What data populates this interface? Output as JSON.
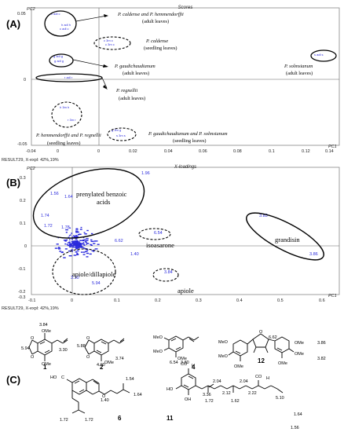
{
  "panelA": {
    "label": "(A)",
    "title": "Scores",
    "y_axis_label": "PC2",
    "x_axis_label": "PC1",
    "footer": "RESULT29, X-expl: 42%,19%",
    "x_ticks": [
      "0",
      "0.02",
      "0.04",
      "0.06",
      "0.08",
      "0.1",
      "0.12",
      "0.14"
    ],
    "y_ticks": [
      "0.05",
      "0",
      "-0.05"
    ],
    "left_tick": "-0.04",
    "annotations": {
      "calde_hemm_adult_1": "P. caldense and P.  hemmendorffii",
      "calde_hemm_adult_2": "(adult leaves)",
      "calde_seed_1": "P. caldense",
      "calde_seed_2": "(seedling leaves)",
      "gaud_adult_1": "P. gaudichaudianum",
      "gaud_adult_2": "(adult leaves)",
      "regn_adult_1": "P. regnellii",
      "regn_adult_2": "(adult leaves)",
      "solm_adult_1": "P. solmsianum",
      "solm_adult_2": "(adult leaves)",
      "hemm_regn_seed_1": "P. hemmendorffii and P. regnellii",
      "hemm_regn_seed_2": "(seedling leaves)",
      "gaud_solm_seed_1": "P. gaudichaudianum and  P. solmsianum",
      "gaud_solm_seed_2": "(seedling leaves)"
    }
  },
  "panelB": {
    "label": "(B)",
    "title": "X-loadings",
    "y_axis_label": "PC2",
    "x_axis_label": "PC1",
    "footer": "RESULT29, X-expl: 42%,19%",
    "x_ticks": [
      "-0.1",
      "0",
      "0.1",
      "0.2",
      "0.3",
      "0.4",
      "0.5",
      "0.6",
      "0.7"
    ],
    "y_ticks": [
      "0.3",
      "0.2",
      "0.1",
      "0",
      "-0.1",
      "-0.2",
      "-0.3"
    ],
    "groups": {
      "prenylated_1": "prenylated benzoic",
      "prenylated_2": "acids",
      "isoasarone": "isoasarone",
      "grandisin": "grandisin",
      "apiole_dillapiole": "apiole/dillapiole",
      "apiole": "apiole"
    },
    "loading_labels": [
      "1.96",
      "1.56",
      "1.64",
      "1.74",
      "1.72",
      "1.78",
      "3.83",
      "3.86",
      "6.54",
      "6.62",
      "3.84",
      "3.30",
      "5.94",
      "1.40"
    ]
  },
  "panelC": {
    "label": "(C)",
    "compounds": [
      {
        "number": "1",
        "shifts": [
          "3.84",
          "5.94",
          "3.30"
        ],
        "groups": [
          "OMe",
          "OMe",
          "O",
          "O"
        ]
      },
      {
        "number": "2",
        "shifts": [
          "5.88",
          "3.74",
          "4.00"
        ],
        "groups": [
          "OMe",
          "O",
          "O"
        ]
      },
      {
        "number": "4",
        "shifts": [
          "6.54",
          "3.80"
        ],
        "groups": [
          "MeO",
          "MeO",
          "OMe"
        ]
      },
      {
        "number": "12",
        "shifts": [
          "6.62",
          "3.86",
          "3.82"
        ],
        "groups": [
          "O",
          "MeO",
          "MeO",
          "OMe",
          "OMe",
          "OMe",
          "OMe"
        ]
      },
      {
        "number": "6",
        "shifts": [
          "1.54",
          "1.64",
          "1.40",
          "1.72",
          "1.72"
        ],
        "groups": [
          "HO",
          "C",
          "O"
        ]
      },
      {
        "number": "11",
        "shifts": [
          "3.36",
          "2.04",
          "2.12",
          "2.04",
          "2.22",
          "1.72",
          "1.62",
          "5.10",
          "1.64",
          "1.56"
        ],
        "groups": [
          "CO",
          "H",
          "HO",
          "OH",
          "CO",
          "H"
        ]
      }
    ]
  }
}
